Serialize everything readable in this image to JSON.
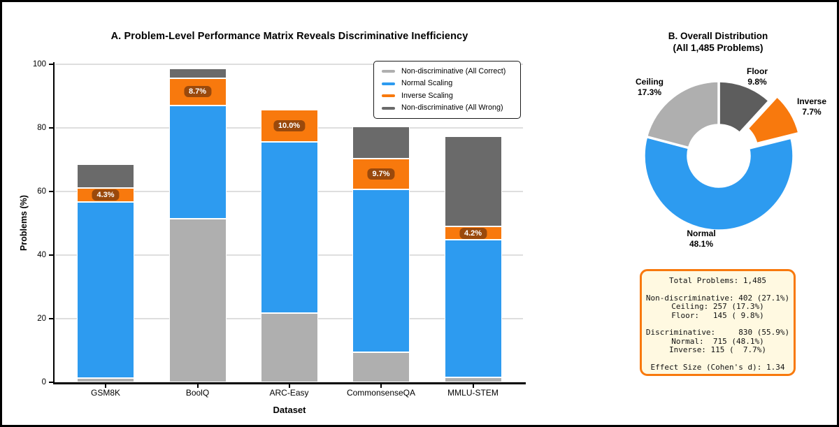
{
  "panel_a": {
    "title": "A. Problem-Level Performance Matrix Reveals Discriminative Inefficiency",
    "xlabel": "Dataset",
    "ylabel": "Problems (%)",
    "legend": [
      {
        "label": "Non-discriminative (All Correct)",
        "color": "#afafaf"
      },
      {
        "label": "Normal Scaling",
        "color": "#2d9bf0"
      },
      {
        "label": "Inverse Scaling",
        "color": "#f8790d"
      },
      {
        "label": "Non-discriminative (All Wrong)",
        "color": "#6a6a6a"
      }
    ]
  },
  "panel_b": {
    "title_line1": "B. Overall Distribution",
    "title_line2": "(All 1,485 Problems)"
  },
  "chart_data": [
    {
      "type": "bar",
      "stacked": true,
      "title": "A. Problem-Level Performance Matrix Reveals Discriminative Inefficiency",
      "xlabel": "Dataset",
      "ylabel": "Problems (%)",
      "ylim": [
        0,
        100
      ],
      "yticks": [
        0,
        20,
        40,
        60,
        80,
        100
      ],
      "grid": true,
      "legend_position": "upper right",
      "categories": [
        "GSM8K",
        "BoolQ",
        "ARC-Easy",
        "CommonsenseQA",
        "MMLU-STEM"
      ],
      "series": [
        {
          "name": "Non-discriminative (All Correct)",
          "color": "#afafaf",
          "values": [
            1.3,
            51.4,
            21.8,
            9.5,
            1.5
          ]
        },
        {
          "name": "Normal Scaling",
          "color": "#2d9bf0",
          "values": [
            55.5,
            35.6,
            53.9,
            51.2,
            43.3
          ]
        },
        {
          "name": "Inverse Scaling",
          "color": "#f8790d",
          "values": [
            4.3,
            8.7,
            10.0,
            9.7,
            4.2
          ],
          "data_labels": [
            "4.3%",
            "8.7%",
            "10.0%",
            "9.7%",
            "4.2%"
          ]
        },
        {
          "name": "Non-discriminative (All Wrong)",
          "color": "#6a6a6a",
          "values": [
            7.5,
            3.0,
            0.0,
            10.1,
            28.4
          ]
        }
      ]
    },
    {
      "type": "pie",
      "subtype": "donut",
      "title": "B. Overall Distribution (All 1,485 Problems)",
      "start_angle_deg": 90,
      "direction": "clockwise",
      "slices": [
        {
          "label": "Floor",
          "value": 9.8,
          "pct_label": "9.8%",
          "color": "#5d5d5d",
          "exploded": false
        },
        {
          "label": "Inverse",
          "value": 7.7,
          "pct_label": "7.7%",
          "color": "#f8790d",
          "exploded": true
        },
        {
          "label": "Normal",
          "value": 48.1,
          "pct_label": "48.1%",
          "color": "#2d9bf0",
          "exploded": false
        },
        {
          "label": "Ceiling",
          "value": 17.3,
          "pct_label": "17.3%",
          "color": "#afafaf",
          "exploded": false
        }
      ]
    }
  ],
  "stats_box": {
    "lines": [
      "Total Problems: 1,485",
      "",
      "Non-discriminative: 402 (27.1%)",
      "Ceiling: 257 (17.3%)",
      "Floor:   145 ( 9.8%)",
      "",
      "Discriminative:     830 (55.9%)",
      "Normal:  715 (48.1%)",
      "Inverse: 115 (  7.7%)",
      "",
      "Effect Size (Cohen's d): 1.34"
    ],
    "border_color": "#f8790d",
    "background_color": "#fff9e1"
  }
}
